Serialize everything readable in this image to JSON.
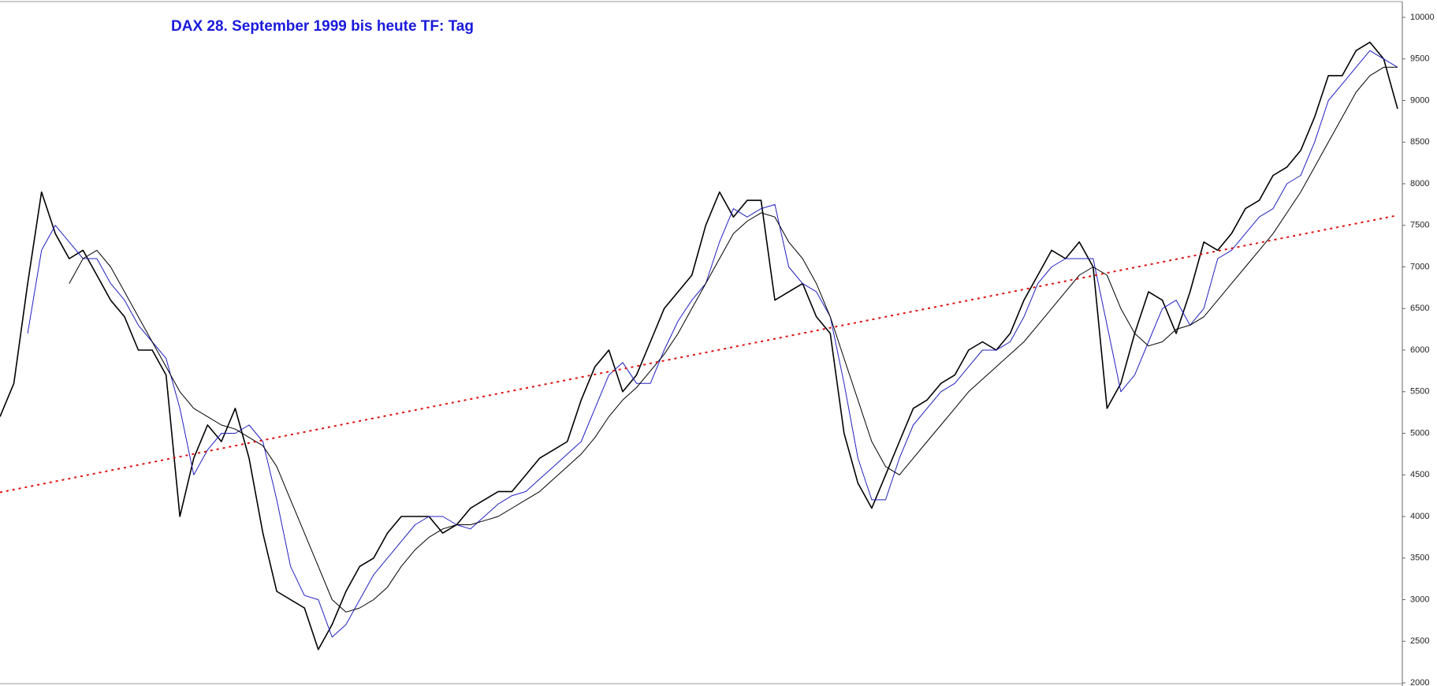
{
  "chart_data": {
    "type": "line",
    "title": "DAX 28. September 1999 bis heute TF: Tag",
    "title_color": "#1a1adc",
    "ylim": [
      2000,
      10000
    ],
    "yticks": [
      2000,
      2500,
      3000,
      3500,
      4000,
      4500,
      5000,
      5500,
      6000,
      6500,
      7000,
      7500,
      8000,
      8500,
      9000,
      9500,
      10000
    ],
    "series": [
      {
        "color": "#000000",
        "width": 1.6,
        "values": [
          5200,
          5600,
          6800,
          7900,
          7400,
          7100,
          7200,
          6900,
          6600,
          6400,
          6000,
          6000,
          5700,
          4000,
          4700,
          5100,
          4900,
          5300,
          4700,
          3800,
          3100,
          3000,
          2900,
          2400,
          2700,
          3100,
          3400,
          3500,
          3800,
          4000,
          4000,
          4000,
          3800,
          3900,
          4100,
          4200,
          4300,
          4300,
          4500,
          4700,
          4800,
          4900,
          5400,
          5800,
          6000,
          5500,
          5700,
          6100,
          6500,
          6700,
          6900,
          7500,
          7900,
          7600,
          7800,
          7800,
          6600,
          6700,
          6800,
          6400,
          6200,
          5000,
          4400,
          4100,
          4500,
          4900,
          5300,
          5400,
          5600,
          5700,
          6000,
          6100,
          6000,
          6200,
          6600,
          6900,
          7200,
          7100,
          7300,
          7000,
          5300,
          5600,
          6200,
          6700,
          6600,
          6200,
          6700,
          7300,
          7200,
          7400,
          7700,
          7800,
          8100,
          8200,
          8400,
          8800,
          9300,
          9300,
          9600,
          9700,
          9500,
          8900
        ]
      },
      {
        "color": "#2020c0",
        "width": 1,
        "values": [
          null,
          null,
          6200,
          7200,
          7500,
          7300,
          7100,
          7100,
          6800,
          6600,
          6300,
          6100,
          5900,
          5300,
          4500,
          4800,
          5000,
          5000,
          5100,
          4900,
          4200,
          3400,
          3050,
          3000,
          2550,
          2700,
          3000,
          3300,
          3500,
          3700,
          3900,
          4000,
          4000,
          3900,
          3850,
          4000,
          4150,
          4250,
          4300,
          4450,
          4600,
          4750,
          4900,
          5300,
          5700,
          5850,
          5600,
          5600,
          6000,
          6350,
          6600,
          6800,
          7300,
          7700,
          7600,
          7700,
          7750,
          7000,
          6800,
          6700,
          6400,
          5600,
          4700,
          4200,
          4200,
          4700,
          5100,
          5300,
          5500,
          5600,
          5800,
          6000,
          6000,
          6100,
          6400,
          6800,
          7000,
          7100,
          7100,
          7100,
          6300,
          5500,
          5700,
          6100,
          6500,
          6600,
          6300,
          6500,
          7100,
          7200,
          7400,
          7600,
          7700,
          8000,
          8100,
          8500,
          9000,
          9200,
          9400,
          9600,
          9500,
          9400
        ]
      },
      {
        "color": "#000000",
        "width": 1,
        "values": [
          null,
          null,
          null,
          null,
          null,
          6800,
          7100,
          7200,
          7000,
          6700,
          6400,
          6100,
          5800,
          5500,
          5300,
          5200,
          5100,
          5050,
          4950,
          4850,
          4600,
          4200,
          3800,
          3400,
          3000,
          2850,
          2900,
          3000,
          3150,
          3400,
          3600,
          3750,
          3850,
          3900,
          3900,
          3950,
          4000,
          4100,
          4200,
          4300,
          4450,
          4600,
          4750,
          4950,
          5200,
          5400,
          5550,
          5750,
          5950,
          6200,
          6500,
          6800,
          7100,
          7400,
          7550,
          7650,
          7600,
          7300,
          7100,
          6800,
          6400,
          5900,
          5400,
          4900,
          4600,
          4500,
          4700,
          4900,
          5100,
          5300,
          5500,
          5650,
          5800,
          5950,
          6100,
          6300,
          6500,
          6700,
          6900,
          7000,
          6900,
          6500,
          6200,
          6050,
          6100,
          6250,
          6300,
          6400,
          6600,
          6800,
          7000,
          7200,
          7400,
          7650,
          7900,
          8200,
          8500,
          8800,
          9100,
          9300,
          9400,
          9400
        ]
      },
      {
        "color": "#e01010",
        "width": 2,
        "dash": "3,5",
        "values": [
          4290,
          7620
        ]
      }
    ]
  }
}
